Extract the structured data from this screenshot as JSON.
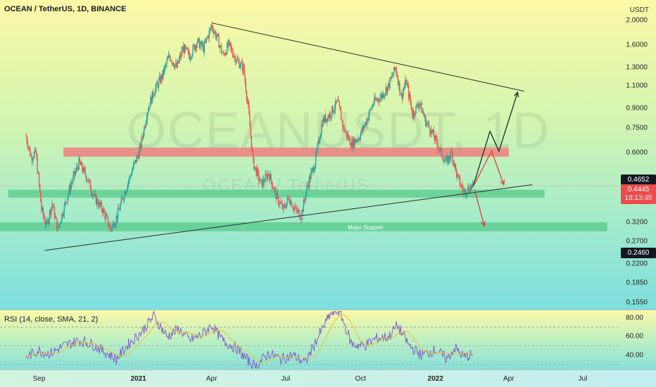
{
  "header": {
    "title": "OCEAN / TetherUS, 1D, BINANCE",
    "currency": "USDT"
  },
  "watermark": {
    "symbol": "OCEANUSDT, 1D",
    "subtitle": "OCEAN / TetherUS"
  },
  "price_axis": {
    "ticks": [
      "2.0000",
      "1.6000",
      "1.3000",
      "1.1000",
      "0.9000",
      "0.7500",
      "0.6000",
      "0.3200",
      "0.2700",
      "0.2200",
      "0.1850",
      "0.1550"
    ],
    "badges": {
      "upper": "0.4652",
      "current": "0.4445",
      "countdown": "18:13:45",
      "lower": "0.2460"
    }
  },
  "rsi": {
    "label": "RSI (14, close, SMA, 21, 2)",
    "ticks": [
      "80.00",
      "60.00",
      "40.00"
    ]
  },
  "time_axis": {
    "labels": [
      {
        "text": "Sep",
        "bold": false
      },
      {
        "text": "2021",
        "bold": true
      },
      {
        "text": "Apr",
        "bold": false
      },
      {
        "text": "Jul",
        "bold": false
      },
      {
        "text": "Oct",
        "bold": false
      },
      {
        "text": "2022",
        "bold": true
      },
      {
        "text": "Apr",
        "bold": false
      },
      {
        "text": "Jul",
        "bold": false
      }
    ]
  },
  "annotations": {
    "major_support": "Major Support"
  },
  "colors": {
    "up": "#26a69a",
    "down": "#ef5350",
    "resistance_zone": "#ee7f7f",
    "support_zone": "#56c98a",
    "rsi_line": "#7e57c2",
    "rsi_ma": "#f5b942",
    "trendline": "#2a2a2a"
  },
  "chart_data": {
    "type": "candlestick",
    "symbol": "OCEAN / TetherUS",
    "interval": "1D",
    "exchange": "BINANCE",
    "y_scale": "log",
    "ylim": [
      0.145,
      2.4
    ],
    "x_range": [
      "2020-07-15",
      "2022-08-15"
    ],
    "price_path": [
      [
        "2020-08-16",
        0.7
      ],
      [
        "2020-08-22",
        0.58
      ],
      [
        "2020-08-28",
        0.6
      ],
      [
        "2020-09-04",
        0.36
      ],
      [
        "2020-09-10",
        0.31
      ],
      [
        "2020-09-17",
        0.38
      ],
      [
        "2020-09-24",
        0.3
      ],
      [
        "2020-10-01",
        0.36
      ],
      [
        "2020-10-10",
        0.45
      ],
      [
        "2020-10-20",
        0.55
      ],
      [
        "2020-10-30",
        0.48
      ],
      [
        "2020-11-08",
        0.4
      ],
      [
        "2020-11-18",
        0.36
      ],
      [
        "2020-11-28",
        0.3
      ],
      [
        "2020-12-06",
        0.34
      ],
      [
        "2020-12-15",
        0.42
      ],
      [
        "2020-12-25",
        0.52
      ],
      [
        "2021-01-03",
        0.62
      ],
      [
        "2021-01-12",
        0.88
      ],
      [
        "2021-01-20",
        1.05
      ],
      [
        "2021-01-30",
        1.2
      ],
      [
        "2021-02-08",
        1.45
      ],
      [
        "2021-02-17",
        1.3
      ],
      [
        "2021-02-25",
        1.55
      ],
      [
        "2021-03-05",
        1.45
      ],
      [
        "2021-03-14",
        1.65
      ],
      [
        "2021-03-22",
        1.55
      ],
      [
        "2021-04-01",
        1.9
      ],
      [
        "2021-04-08",
        1.7
      ],
      [
        "2021-04-15",
        1.45
      ],
      [
        "2021-04-22",
        1.6
      ],
      [
        "2021-05-01",
        1.4
      ],
      [
        "2021-05-10",
        1.3
      ],
      [
        "2021-05-16",
        0.9
      ],
      [
        "2021-05-22",
        0.55
      ],
      [
        "2021-06-01",
        0.45
      ],
      [
        "2021-06-10",
        0.5
      ],
      [
        "2021-06-20",
        0.4
      ],
      [
        "2021-06-28",
        0.36
      ],
      [
        "2021-07-05",
        0.4
      ],
      [
        "2021-07-12",
        0.36
      ],
      [
        "2021-07-20",
        0.34
      ],
      [
        "2021-07-28",
        0.45
      ],
      [
        "2021-08-06",
        0.55
      ],
      [
        "2021-08-15",
        0.8
      ],
      [
        "2021-08-24",
        0.85
      ],
      [
        "2021-09-03",
        0.95
      ],
      [
        "2021-09-10",
        0.75
      ],
      [
        "2021-09-20",
        0.65
      ],
      [
        "2021-09-30",
        0.7
      ],
      [
        "2021-10-08",
        0.8
      ],
      [
        "2021-10-17",
        0.95
      ],
      [
        "2021-10-26",
        1.0
      ],
      [
        "2021-11-04",
        1.1
      ],
      [
        "2021-11-13",
        1.3
      ],
      [
        "2021-11-20",
        1.0
      ],
      [
        "2021-11-26",
        1.15
      ],
      [
        "2021-12-04",
        0.85
      ],
      [
        "2021-12-12",
        0.95
      ],
      [
        "2021-12-20",
        0.8
      ],
      [
        "2021-12-28",
        0.72
      ],
      [
        "2022-01-06",
        0.62
      ],
      [
        "2022-01-14",
        0.55
      ],
      [
        "2022-01-21",
        0.6
      ],
      [
        "2022-01-28",
        0.48
      ],
      [
        "2022-02-05",
        0.42
      ],
      [
        "2022-02-12",
        0.44
      ],
      [
        "2022-02-16",
        0.4445
      ]
    ],
    "zones": [
      {
        "role": "resistance",
        "from": 0.58,
        "to": 0.63,
        "x_from": "2020-10-01",
        "x_to": "2022-04-01"
      },
      {
        "role": "support",
        "from": 0.4,
        "to": 0.43,
        "x_from": "2020-07-25",
        "x_to": "2022-05-15"
      },
      {
        "role": "support",
        "label": "Major Support",
        "from": 0.295,
        "to": 0.32,
        "x_from": "2020-06-20",
        "x_to": "2022-07-31"
      }
    ],
    "trendlines": [
      {
        "from": [
          "2021-04-01",
          1.95
        ],
        "to": [
          "2022-04-20",
          1.05
        ]
      },
      {
        "from": [
          "2020-09-08",
          0.248
        ],
        "to": [
          "2022-04-30",
          0.45
        ]
      }
    ],
    "projection_paths": [
      {
        "color": "#1f2d1f",
        "points": [
          [
            "2022-02-16",
            0.44
          ],
          [
            "2022-03-09",
            0.73
          ],
          [
            "2022-03-20",
            0.61
          ],
          [
            "2022-04-12",
            1.04
          ]
        ]
      },
      {
        "color": "#e33b3b",
        "points": [
          [
            "2022-02-16",
            0.44
          ],
          [
            "2022-03-11",
            0.61
          ],
          [
            "2022-03-26",
            0.45
          ]
        ]
      },
      {
        "color": "#e33b3b",
        "points": [
          [
            "2022-02-18",
            0.43
          ],
          [
            "2022-03-02",
            0.31
          ]
        ]
      }
    ],
    "rsi": {
      "length": 14,
      "source": "close",
      "ma": "SMA",
      "ma_length": 21,
      "ylim": [
        25,
        88
      ],
      "levels": [
        70,
        50,
        30
      ],
      "path": [
        [
          "2020-08-16",
          38
        ],
        [
          "2020-08-30",
          45
        ],
        [
          "2020-09-15",
          42
        ],
        [
          "2020-10-01",
          50
        ],
        [
          "2020-10-20",
          56
        ],
        [
          "2020-11-05",
          52
        ],
        [
          "2020-11-20",
          44
        ],
        [
          "2020-12-05",
          36
        ],
        [
          "2020-12-20",
          52
        ],
        [
          "2021-01-05",
          65
        ],
        [
          "2021-01-20",
          82
        ],
        [
          "2021-02-05",
          60
        ],
        [
          "2021-02-20",
          68
        ],
        [
          "2021-03-05",
          56
        ],
        [
          "2021-03-20",
          62
        ],
        [
          "2021-04-01",
          72
        ],
        [
          "2021-04-15",
          55
        ],
        [
          "2021-05-01",
          48
        ],
        [
          "2021-05-15",
          35
        ],
        [
          "2021-05-25",
          28
        ],
        [
          "2021-06-10",
          42
        ],
        [
          "2021-06-25",
          36
        ],
        [
          "2021-07-10",
          40
        ],
        [
          "2021-07-25",
          32
        ],
        [
          "2021-08-10",
          60
        ],
        [
          "2021-08-25",
          84
        ],
        [
          "2021-09-05",
          88
        ],
        [
          "2021-09-20",
          52
        ],
        [
          "2021-10-05",
          50
        ],
        [
          "2021-10-20",
          58
        ],
        [
          "2021-11-05",
          60
        ],
        [
          "2021-11-15",
          72
        ],
        [
          "2021-11-30",
          50
        ],
        [
          "2021-12-15",
          40
        ],
        [
          "2022-01-01",
          46
        ],
        [
          "2022-01-15",
          36
        ],
        [
          "2022-01-25",
          48
        ],
        [
          "2022-02-05",
          38
        ],
        [
          "2022-02-16",
          41
        ]
      ]
    }
  }
}
